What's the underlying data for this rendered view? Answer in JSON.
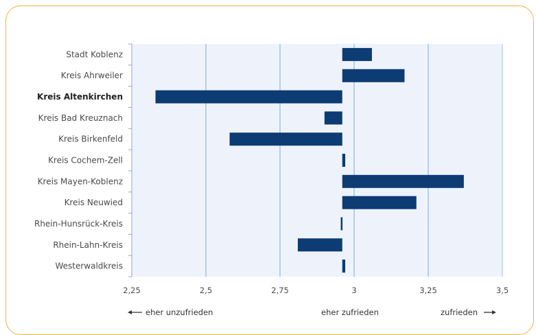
{
  "chart_data": {
    "type": "bar",
    "orientation": "horizontal",
    "baseline": 2.96,
    "categories": [
      "Stadt Koblenz",
      "Kreis Ahrweiler",
      "Kreis Altenkirchen",
      "Kreis Bad Kreuznach",
      "Kreis Birkenfeld",
      "Kreis Cochem-Zell",
      "Kreis Mayen-Koblenz",
      "Kreis Neuwied",
      "Rhein-Hunsrück-Kreis",
      "Rhein-Lahn-Kreis",
      "Westerwaldkreis"
    ],
    "highlighted_category": "Kreis Altenkirchen",
    "values": [
      3.06,
      3.17,
      2.33,
      2.9,
      2.58,
      2.97,
      3.37,
      3.21,
      2.955,
      2.81,
      2.97
    ],
    "xlim": [
      2.25,
      3.5
    ],
    "xticks": [
      2.25,
      2.5,
      2.75,
      3,
      3.25,
      3.5
    ],
    "xtick_labels": [
      "2,25",
      "2,5",
      "2,75",
      "3",
      "3,25",
      "3,5"
    ],
    "grid": true,
    "bar_color": "#0d3b73",
    "plot_background": "#eef3fb",
    "grid_color": "#9fbfe6"
  },
  "footer": {
    "left_label": "eher unzufrieden",
    "center_label": "eher zufrieden",
    "right_label": "zufrieden"
  },
  "colors": {
    "frame": "#f2b13c",
    "text": "#4a4a4a"
  }
}
